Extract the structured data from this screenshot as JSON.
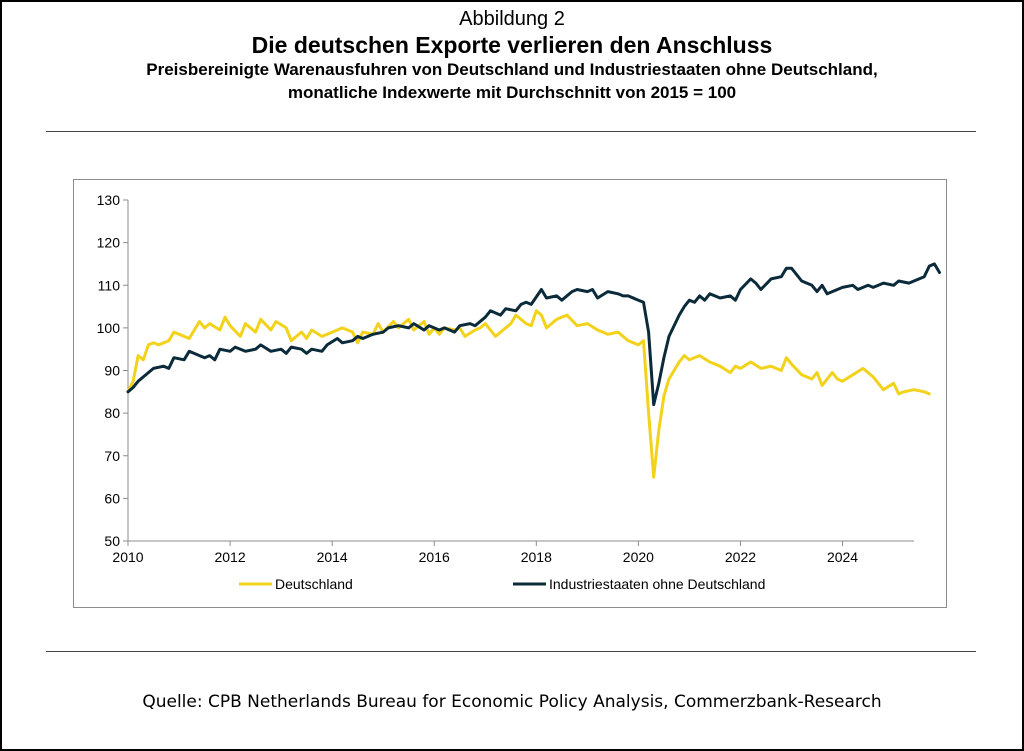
{
  "header": {
    "kicker": "Abbildung 2",
    "title": "Die deutschen Exporte verlieren den Anschluss",
    "subtitle_line1": "Preisbereinigte Warenausfuhren von Deutschland und Industriestaaten ohne Deutschland,",
    "subtitle_line2": "monatliche Indexwerte mit Durchschnitt von 2015 = 100"
  },
  "source": "Quelle: CPB Netherlands Bureau for Economic Policy Analysis, Commerzbank-Research",
  "colors": {
    "deutschland": "#F2D21B",
    "industrie": "#0B2B3A",
    "axis": "#8c8c8c"
  },
  "chart_data": {
    "type": "line",
    "title": "Die deutschen Exporte verlieren den Anschluss",
    "xlim": [
      2010,
      2025.4
    ],
    "ylim": [
      50,
      130
    ],
    "x_ticks": [
      2010,
      2012,
      2014,
      2016,
      2018,
      2020,
      2022,
      2024
    ],
    "x_tick_labels": [
      "2010",
      "2012",
      "2014",
      "2016",
      "2018",
      "2020",
      "2022",
      "2024"
    ],
    "y_ticks": [
      50,
      60,
      70,
      80,
      90,
      100,
      110,
      120,
      130
    ],
    "y_tick_labels": [
      "50",
      "60",
      "70",
      "80",
      "90",
      "100",
      "110",
      "120",
      "130"
    ],
    "grid": false,
    "legend_position": "bottom",
    "series": [
      {
        "name": "Deutschland",
        "color": "#F2D21B",
        "points": [
          [
            2010.0,
            85
          ],
          [
            2010.1,
            87.5
          ],
          [
            2010.2,
            93.5
          ],
          [
            2010.3,
            92.5
          ],
          [
            2010.4,
            96.0
          ],
          [
            2010.5,
            96.5
          ],
          [
            2010.6,
            96.0
          ],
          [
            2010.8,
            97.0
          ],
          [
            2010.9,
            99.0
          ],
          [
            2011.0,
            98.5
          ],
          [
            2011.2,
            97.5
          ],
          [
            2011.4,
            101.5
          ],
          [
            2011.5,
            100.0
          ],
          [
            2011.6,
            101.0
          ],
          [
            2011.8,
            99.5
          ],
          [
            2011.9,
            102.5
          ],
          [
            2012.0,
            100.5
          ],
          [
            2012.2,
            98.0
          ],
          [
            2012.3,
            101.0
          ],
          [
            2012.5,
            99.0
          ],
          [
            2012.6,
            102.0
          ],
          [
            2012.8,
            99.5
          ],
          [
            2012.9,
            101.5
          ],
          [
            2013.1,
            100.0
          ],
          [
            2013.2,
            97.0
          ],
          [
            2013.4,
            99.0
          ],
          [
            2013.5,
            97.5
          ],
          [
            2013.6,
            99.5
          ],
          [
            2013.8,
            98.0
          ],
          [
            2013.9,
            98.5
          ],
          [
            2014.1,
            99.5
          ],
          [
            2014.2,
            100.0
          ],
          [
            2014.4,
            99.0
          ],
          [
            2014.5,
            96.5
          ],
          [
            2014.6,
            99.0
          ],
          [
            2014.8,
            98.5
          ],
          [
            2014.9,
            101.0
          ],
          [
            2015.0,
            99.0
          ],
          [
            2015.2,
            101.5
          ],
          [
            2015.3,
            100.0
          ],
          [
            2015.5,
            102.0
          ],
          [
            2015.6,
            99.5
          ],
          [
            2015.8,
            101.5
          ],
          [
            2015.9,
            98.5
          ],
          [
            2016.0,
            100.0
          ],
          [
            2016.1,
            98.5
          ],
          [
            2016.2,
            100.0
          ],
          [
            2016.4,
            99.5
          ],
          [
            2016.5,
            100.0
          ],
          [
            2016.6,
            98.0
          ],
          [
            2016.8,
            99.5
          ],
          [
            2016.9,
            100.0
          ],
          [
            2017.0,
            101.0
          ],
          [
            2017.2,
            98.0
          ],
          [
            2017.4,
            100.0
          ],
          [
            2017.5,
            101.0
          ],
          [
            2017.6,
            103.0
          ],
          [
            2017.8,
            101.0
          ],
          [
            2017.9,
            100.5
          ],
          [
            2018.0,
            104.0
          ],
          [
            2018.1,
            103.0
          ],
          [
            2018.2,
            100.0
          ],
          [
            2018.4,
            102.0
          ],
          [
            2018.6,
            103.0
          ],
          [
            2018.8,
            100.5
          ],
          [
            2019.0,
            101.0
          ],
          [
            2019.2,
            99.5
          ],
          [
            2019.4,
            98.5
          ],
          [
            2019.6,
            99.0
          ],
          [
            2019.8,
            97.0
          ],
          [
            2020.0,
            96.0
          ],
          [
            2020.1,
            97.0
          ],
          [
            2020.2,
            80.0
          ],
          [
            2020.3,
            65.0
          ],
          [
            2020.4,
            76.0
          ],
          [
            2020.5,
            84.0
          ],
          [
            2020.6,
            88.0
          ],
          [
            2020.8,
            92.0
          ],
          [
            2020.9,
            93.5
          ],
          [
            2021.0,
            92.5
          ],
          [
            2021.2,
            93.5
          ],
          [
            2021.4,
            92.0
          ],
          [
            2021.6,
            91.0
          ],
          [
            2021.8,
            89.5
          ],
          [
            2021.9,
            91.0
          ],
          [
            2022.0,
            90.5
          ],
          [
            2022.2,
            92.0
          ],
          [
            2022.4,
            90.5
          ],
          [
            2022.6,
            91.0
          ],
          [
            2022.8,
            90.0
          ],
          [
            2022.9,
            93.0
          ],
          [
            2023.0,
            91.5
          ],
          [
            2023.2,
            89.0
          ],
          [
            2023.4,
            88.0
          ],
          [
            2023.5,
            89.5
          ],
          [
            2023.6,
            86.5
          ],
          [
            2023.8,
            89.5
          ],
          [
            2023.9,
            88.0
          ],
          [
            2024.0,
            87.5
          ],
          [
            2024.2,
            89.0
          ],
          [
            2024.4,
            90.5
          ],
          [
            2024.6,
            88.5
          ],
          [
            2024.7,
            87.0
          ],
          [
            2024.8,
            85.5
          ],
          [
            2025.0,
            87.0
          ],
          [
            2025.1,
            84.5
          ],
          [
            2025.2,
            85.0
          ],
          [
            2025.4,
            85.5
          ],
          [
            2025.6,
            85.0
          ],
          [
            2025.7,
            84.5
          ]
        ]
      },
      {
        "name": "Industriestaaten ohne Deutschland",
        "color": "#0B2B3A",
        "points": [
          [
            2010.0,
            85
          ],
          [
            2010.1,
            86.0
          ],
          [
            2010.2,
            87.5
          ],
          [
            2010.4,
            89.5
          ],
          [
            2010.5,
            90.5
          ],
          [
            2010.7,
            91.0
          ],
          [
            2010.8,
            90.5
          ],
          [
            2010.9,
            93.0
          ],
          [
            2011.1,
            92.5
          ],
          [
            2011.2,
            94.5
          ],
          [
            2011.4,
            93.5
          ],
          [
            2011.5,
            93.0
          ],
          [
            2011.6,
            93.5
          ],
          [
            2011.7,
            92.5
          ],
          [
            2011.8,
            95.0
          ],
          [
            2012.0,
            94.5
          ],
          [
            2012.1,
            95.5
          ],
          [
            2012.3,
            94.5
          ],
          [
            2012.5,
            95.0
          ],
          [
            2012.6,
            96.0
          ],
          [
            2012.8,
            94.5
          ],
          [
            2013.0,
            95.0
          ],
          [
            2013.1,
            94.0
          ],
          [
            2013.2,
            95.5
          ],
          [
            2013.4,
            95.0
          ],
          [
            2013.5,
            94.0
          ],
          [
            2013.6,
            95.0
          ],
          [
            2013.8,
            94.5
          ],
          [
            2013.9,
            96.0
          ],
          [
            2014.1,
            97.5
          ],
          [
            2014.2,
            96.5
          ],
          [
            2014.4,
            97.0
          ],
          [
            2014.5,
            98.0
          ],
          [
            2014.6,
            97.5
          ],
          [
            2014.8,
            98.5
          ],
          [
            2015.0,
            99.0
          ],
          [
            2015.1,
            100.0
          ],
          [
            2015.3,
            100.5
          ],
          [
            2015.5,
            100.0
          ],
          [
            2015.6,
            101.0
          ],
          [
            2015.8,
            99.5
          ],
          [
            2015.9,
            100.5
          ],
          [
            2016.1,
            99.5
          ],
          [
            2016.2,
            100.0
          ],
          [
            2016.4,
            99.0
          ],
          [
            2016.5,
            100.5
          ],
          [
            2016.7,
            101.0
          ],
          [
            2016.8,
            100.5
          ],
          [
            2017.0,
            102.5
          ],
          [
            2017.1,
            104.0
          ],
          [
            2017.3,
            103.0
          ],
          [
            2017.4,
            104.5
          ],
          [
            2017.6,
            104.0
          ],
          [
            2017.7,
            105.5
          ],
          [
            2017.8,
            106.0
          ],
          [
            2017.9,
            105.5
          ],
          [
            2018.1,
            109.0
          ],
          [
            2018.2,
            107.0
          ],
          [
            2018.4,
            107.5
          ],
          [
            2018.5,
            106.5
          ],
          [
            2018.7,
            108.5
          ],
          [
            2018.8,
            109.0
          ],
          [
            2019.0,
            108.5
          ],
          [
            2019.1,
            109.0
          ],
          [
            2019.2,
            107.0
          ],
          [
            2019.4,
            108.5
          ],
          [
            2019.6,
            108.0
          ],
          [
            2019.7,
            107.5
          ],
          [
            2019.8,
            107.5
          ],
          [
            2020.0,
            106.5
          ],
          [
            2020.1,
            106.0
          ],
          [
            2020.2,
            99.0
          ],
          [
            2020.3,
            82.0
          ],
          [
            2020.4,
            87.0
          ],
          [
            2020.5,
            93.0
          ],
          [
            2020.6,
            98.0
          ],
          [
            2020.8,
            103.0
          ],
          [
            2020.9,
            105.0
          ],
          [
            2021.0,
            106.5
          ],
          [
            2021.1,
            106.0
          ],
          [
            2021.2,
            107.5
          ],
          [
            2021.3,
            106.5
          ],
          [
            2021.4,
            108.0
          ],
          [
            2021.6,
            107.0
          ],
          [
            2021.8,
            107.5
          ],
          [
            2021.9,
            106.5
          ],
          [
            2022.0,
            109.0
          ],
          [
            2022.2,
            111.5
          ],
          [
            2022.3,
            110.5
          ],
          [
            2022.4,
            109.0
          ],
          [
            2022.6,
            111.5
          ],
          [
            2022.8,
            112.0
          ],
          [
            2022.9,
            114.0
          ],
          [
            2023.0,
            114.0
          ],
          [
            2023.2,
            111.0
          ],
          [
            2023.4,
            110.0
          ],
          [
            2023.5,
            108.5
          ],
          [
            2023.6,
            110.0
          ],
          [
            2023.7,
            108.0
          ],
          [
            2023.9,
            109.0
          ],
          [
            2024.0,
            109.5
          ],
          [
            2024.2,
            110.0
          ],
          [
            2024.3,
            109.0
          ],
          [
            2024.5,
            110.0
          ],
          [
            2024.6,
            109.5
          ],
          [
            2024.8,
            110.5
          ],
          [
            2025.0,
            110.0
          ],
          [
            2025.1,
            111.0
          ],
          [
            2025.3,
            110.5
          ],
          [
            2025.5,
            111.5
          ],
          [
            2025.6,
            112.0
          ],
          [
            2025.7,
            114.5
          ],
          [
            2025.8,
            115.0
          ],
          [
            2025.9,
            113.0
          ]
        ]
      }
    ]
  }
}
